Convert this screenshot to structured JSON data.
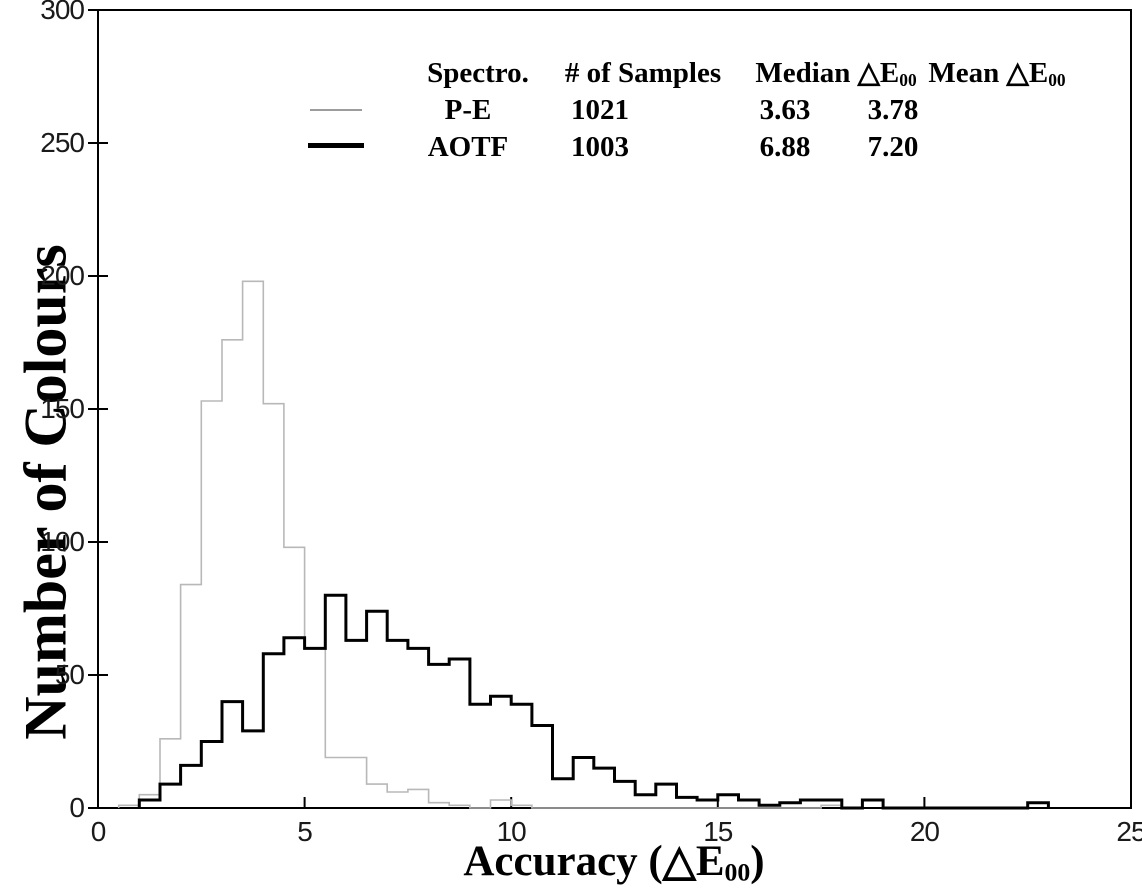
{
  "figure": {
    "background": "#ffffff",
    "axis_color": "#000000"
  },
  "legend": {
    "headers": {
      "spectro": "Spectro.",
      "samples": "# of Samples",
      "median_prefix": "Median ",
      "mean_prefix": "Mean ",
      "delta_e": "△E",
      "subscript": "00"
    },
    "rows": [
      {
        "name": "P-E",
        "samples": "1021",
        "median": "3.63",
        "mean": "3.78",
        "line_color": "#9c9c9c",
        "line_width": 2
      },
      {
        "name": "AOTF",
        "samples": "1003",
        "median": "6.88",
        "mean": "7.20",
        "line_color": "#000000",
        "line_width": 5
      }
    ]
  },
  "chart_data": {
    "type": "line",
    "subtype": "step-histogram-outline",
    "title": "",
    "xlabel": {
      "prefix": "Accuracy (",
      "delta_e": "△E",
      "subscript": "00",
      "suffix": ")"
    },
    "ylabel": "Number of Colours",
    "xlim": [
      0,
      25
    ],
    "ylim": [
      0,
      300
    ],
    "xticks": [
      0,
      5,
      10,
      15,
      20,
      25
    ],
    "yticks": [
      0,
      50,
      100,
      150,
      200,
      250,
      300
    ],
    "grid": false,
    "legend_position": "top-center-inside",
    "bin_width": 0.5,
    "series": [
      {
        "name": "P-E",
        "color": "#b8b8b8",
        "line_width": 1.6,
        "bin_start": 0.5,
        "counts": [
          1,
          5,
          26,
          84,
          153,
          176,
          198,
          152,
          98,
          60,
          19,
          19,
          9,
          6,
          7,
          2,
          1,
          0,
          3,
          1,
          0,
          0,
          0,
          0,
          0,
          0,
          0,
          0,
          0,
          0,
          0,
          0,
          0,
          0,
          1
        ]
      },
      {
        "name": "AOTF",
        "color": "#000000",
        "line_width": 3,
        "bin_start": 1.0,
        "counts": [
          3,
          9,
          16,
          25,
          40,
          29,
          58,
          64,
          60,
          80,
          63,
          74,
          63,
          60,
          54,
          56,
          39,
          42,
          39,
          31,
          11,
          19,
          15,
          10,
          5,
          9,
          4,
          3,
          5,
          3,
          1,
          2,
          3,
          3,
          0,
          3,
          0,
          0,
          0,
          0,
          0,
          0,
          0,
          2
        ]
      }
    ]
  }
}
